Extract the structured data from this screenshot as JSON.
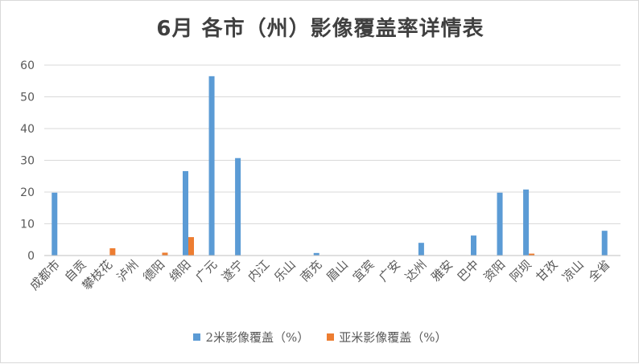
{
  "title": "6月 各市（州）影像覆盖率详情表",
  "chart_data": {
    "type": "bar",
    "title": "6月 各市（州）影像覆盖率详情表",
    "categories": [
      "成都市",
      "自贡",
      "攀枝花",
      "泸州",
      "德阳",
      "绵阳",
      "广元",
      "遂宁",
      "内江",
      "乐山",
      "南充",
      "眉山",
      "宜宾",
      "广安",
      "达州",
      "雅安",
      "巴中",
      "资阳",
      "阿坝",
      "甘孜",
      "凉山",
      "全省"
    ],
    "series": [
      {
        "name": "2米影像覆盖（%）",
        "color": "#5b9bd5",
        "values": [
          19.8,
          0,
          0,
          0,
          0,
          26.6,
          56.5,
          30.7,
          0,
          0,
          0.8,
          0,
          0,
          0,
          4.0,
          0,
          6.3,
          19.8,
          20.8,
          0,
          0,
          7.8
        ]
      },
      {
        "name": "亚米影像覆盖（%）",
        "color": "#ed7d31",
        "values": [
          0,
          0,
          2.3,
          0,
          0.9,
          5.8,
          0,
          0,
          0,
          0,
          0,
          0,
          0,
          0,
          0,
          0,
          0,
          0,
          0.6,
          0,
          0,
          0
        ]
      }
    ],
    "ylim": [
      0,
      60
    ],
    "yticks": [
      0,
      10,
      20,
      30,
      40,
      50,
      60
    ],
    "grid": true,
    "legend": "bottom",
    "gridColor": "#d9d9d9",
    "axisColor": "#bfbfbf"
  }
}
